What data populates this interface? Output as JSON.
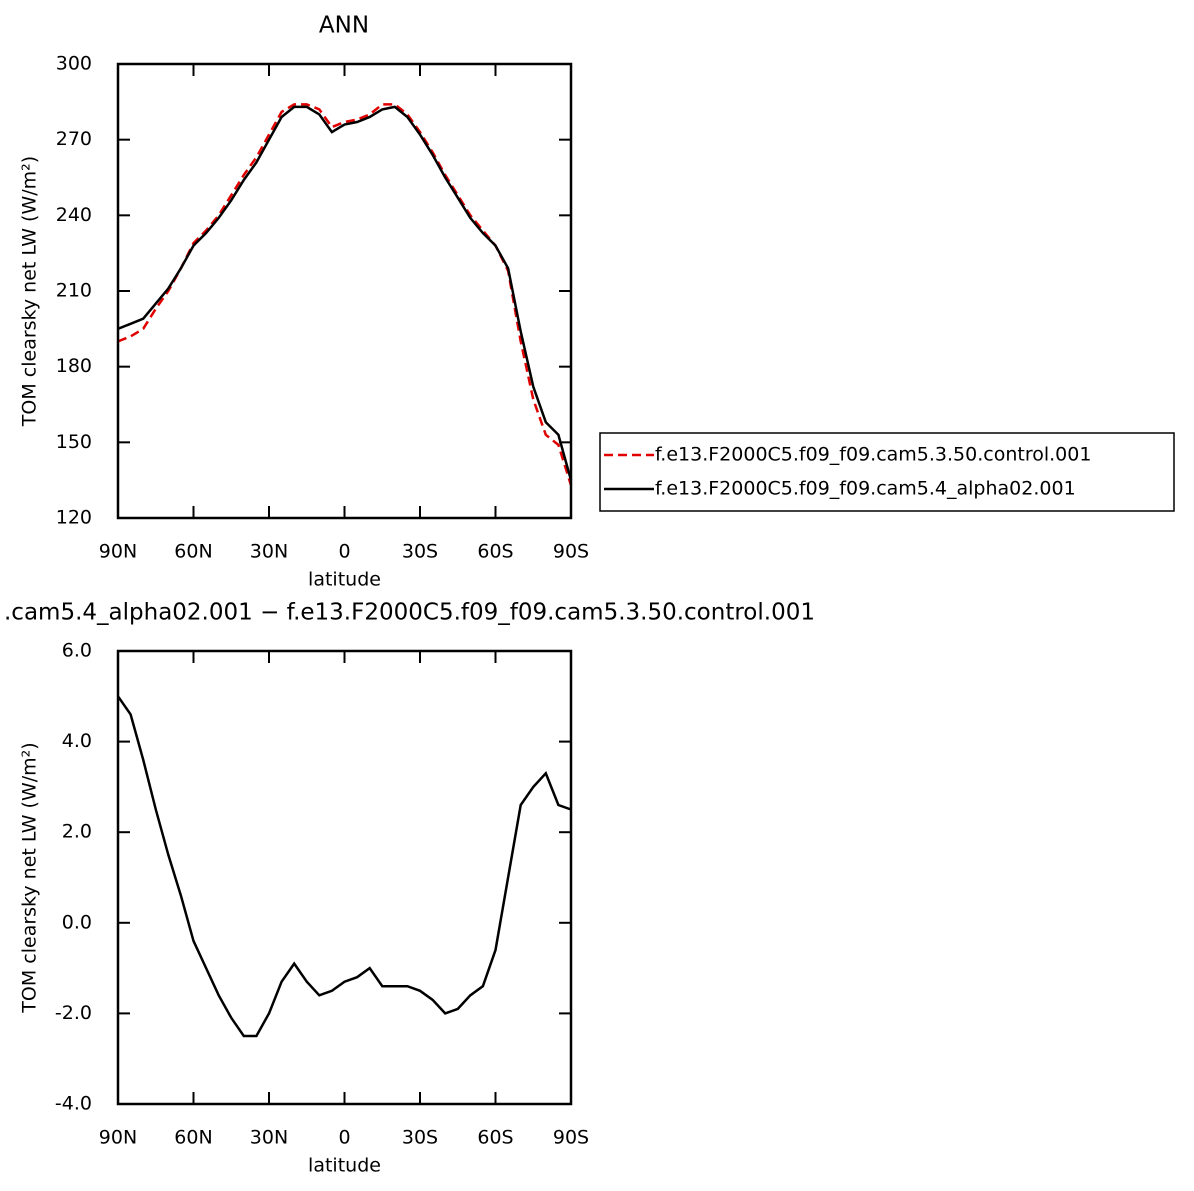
{
  "chart_data": [
    {
      "type": "line",
      "title": "ANN",
      "xlabel": "latitude",
      "ylabel": "TOM clearsky net LW (W/m²)",
      "x": [
        90,
        85,
        80,
        75,
        70,
        65,
        60,
        55,
        50,
        45,
        40,
        35,
        30,
        25,
        20,
        15,
        10,
        5,
        0,
        -5,
        -10,
        -15,
        -20,
        -25,
        -30,
        -35,
        -40,
        -45,
        -50,
        -55,
        -60,
        -65,
        -70,
        -75,
        -80,
        -85,
        -90
      ],
      "series": [
        {
          "name": "f.e13.F2000C5.f09_f09.cam5.3.50.control.001",
          "color": "#e00000",
          "linestyle": "dashed",
          "values": [
            190,
            192,
            195,
            203,
            210,
            219,
            229,
            234,
            240,
            248,
            256,
            263,
            272,
            281,
            284,
            284,
            282,
            275,
            277,
            278,
            280,
            284,
            284,
            280,
            273,
            265,
            256,
            248,
            240,
            234,
            228,
            218,
            190,
            167,
            153,
            149,
            133
          ]
        },
        {
          "name": "f.e13.F2000C5.f09_f09.cam5.4_alpha02.001",
          "color": "#000000",
          "linestyle": "solid",
          "values": [
            195,
            197,
            199,
            205,
            211,
            219,
            228,
            233,
            239,
            246,
            254,
            261,
            270,
            279,
            283,
            283,
            280,
            273,
            276,
            277,
            279,
            282,
            283,
            279,
            272,
            264,
            255,
            247,
            239,
            233,
            228,
            219,
            194,
            172,
            158,
            153,
            135
          ]
        }
      ],
      "xlim": [
        90,
        -90
      ],
      "xticks": [
        {
          "value": 90,
          "label": "90N"
        },
        {
          "value": 60,
          "label": "60N"
        },
        {
          "value": 30,
          "label": "30N"
        },
        0,
        {
          "value": -30,
          "label": "30S"
        },
        {
          "value": -60,
          "label": "60S"
        },
        {
          "value": -90,
          "label": "90S"
        }
      ],
      "ylim": [
        120,
        300
      ],
      "yticks": [
        120,
        150,
        180,
        210,
        240,
        270,
        300
      ],
      "legend": "right"
    },
    {
      "type": "line",
      "title": ".cam5.4_alpha02.001 − f.e13.F2000C5.f09_f09.cam5.3.50.control.001",
      "xlabel": "latitude",
      "ylabel": "TOM clearsky net LW (W/m²)",
      "x": [
        90,
        85,
        80,
        75,
        70,
        65,
        60,
        55,
        50,
        45,
        40,
        35,
        30,
        25,
        20,
        15,
        10,
        5,
        0,
        -5,
        -10,
        -15,
        -20,
        -25,
        -30,
        -35,
        -40,
        -45,
        -50,
        -55,
        -60,
        -65,
        -70,
        -75,
        -80,
        -85,
        -90
      ],
      "values": [
        5.0,
        4.6,
        3.6,
        2.5,
        1.5,
        0.6,
        -0.4,
        -1.0,
        -1.6,
        -2.1,
        -2.5,
        -2.5,
        -2.0,
        -1.3,
        -0.9,
        -1.3,
        -1.6,
        -1.5,
        -1.3,
        -1.2,
        -1.0,
        -1.4,
        -1.4,
        -1.4,
        -1.5,
        -1.7,
        -2.0,
        -1.9,
        -1.6,
        -1.4,
        -0.6,
        1.0,
        2.6,
        3.0,
        3.3,
        2.6,
        2.5
      ],
      "color": "#000000",
      "xlim": [
        90,
        -90
      ],
      "xticks": [
        {
          "value": 90,
          "label": "90N"
        },
        {
          "value": 60,
          "label": "60N"
        },
        {
          "value": 30,
          "label": "30N"
        },
        0,
        {
          "value": -30,
          "label": "30S"
        },
        {
          "value": -60,
          "label": "60S"
        },
        {
          "value": -90,
          "label": "90S"
        }
      ],
      "ylim": [
        -4,
        6
      ],
      "yticks": [
        {
          "value": -4,
          "label": "-4.0"
        },
        {
          "value": -2,
          "label": "-2.0"
        },
        {
          "value": 0,
          "label": "0.0"
        },
        {
          "value": 2,
          "label": "2.0"
        },
        {
          "value": 4,
          "label": "4.0"
        },
        {
          "value": 6,
          "label": "6.0"
        }
      ]
    }
  ]
}
